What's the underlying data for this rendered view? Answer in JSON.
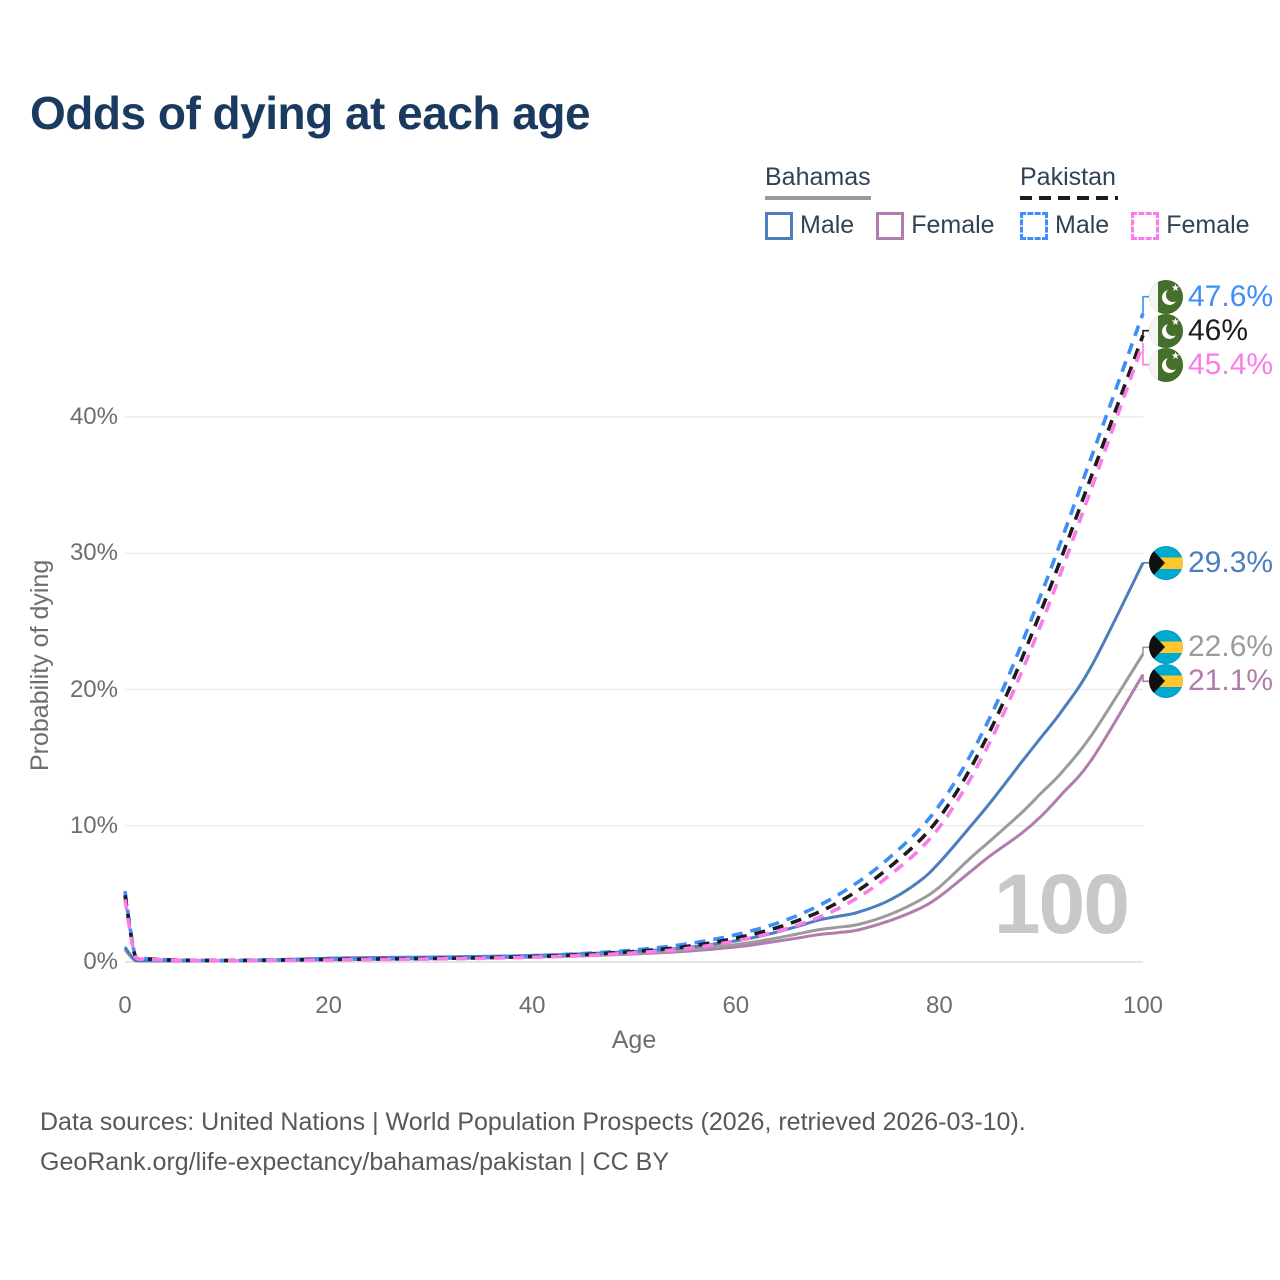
{
  "title": "Odds of dying at each age",
  "legend": {
    "groups": [
      {
        "country": "Bahamas",
        "line_style": "solid",
        "underline_color": "#9a9a9a",
        "items": [
          {
            "label": "Male",
            "color": "#4b7ebd",
            "dashed": false
          },
          {
            "label": "Female",
            "color": "#b27cae",
            "dashed": false
          }
        ]
      },
      {
        "country": "Pakistan",
        "line_style": "dashed",
        "underline_color": "#1c1c1c",
        "items": [
          {
            "label": "Male",
            "color": "#3e8ef7",
            "dashed": true
          },
          {
            "label": "Female",
            "color": "#fb7be9",
            "dashed": true
          }
        ]
      }
    ]
  },
  "watermark": "100",
  "footer": {
    "line1": "Data sources: United Nations | World Population Prospects (2026, retrieved 2026-03-10).",
    "line2": "GeoRank.org/life-expectancy/bahamas/pakistan | CC BY"
  },
  "chart_data": {
    "type": "line",
    "title": "Odds of dying at each age",
    "xlabel": "Age",
    "ylabel": "Probability of dying",
    "xlim": [
      0,
      100
    ],
    "ylim": [
      0,
      48
    ],
    "x_ticks": [
      0,
      20,
      40,
      60,
      80,
      100
    ],
    "y_ticks": [
      {
        "value": 0,
        "label": "0%"
      },
      {
        "value": 10,
        "label": "10%"
      },
      {
        "value": 20,
        "label": "20%"
      },
      {
        "value": 30,
        "label": "30%"
      },
      {
        "value": 40,
        "label": "40%"
      }
    ],
    "grid": true,
    "legend_position": "top-right",
    "series": [
      {
        "id": "bahamas-female",
        "name": "Bahamas Female",
        "country": "bahamas",
        "sex": "female",
        "color": "#b27cae",
        "dashed": false,
        "end_label": "21.1%",
        "points": [
          [
            0,
            0.9
          ],
          [
            1,
            0.1
          ],
          [
            2,
            0.07
          ],
          [
            5,
            0.06
          ],
          [
            10,
            0.07
          ],
          [
            15,
            0.11
          ],
          [
            20,
            0.16
          ],
          [
            25,
            0.2
          ],
          [
            30,
            0.24
          ],
          [
            35,
            0.29
          ],
          [
            40,
            0.36
          ],
          [
            45,
            0.45
          ],
          [
            50,
            0.59
          ],
          [
            55,
            0.78
          ],
          [
            60,
            1.1
          ],
          [
            63,
            1.4
          ],
          [
            66,
            1.75
          ],
          [
            68,
            2.0
          ],
          [
            70,
            2.15
          ],
          [
            72,
            2.35
          ],
          [
            75,
            3.0
          ],
          [
            78,
            3.9
          ],
          [
            80,
            4.8
          ],
          [
            83,
            6.6
          ],
          [
            85,
            7.8
          ],
          [
            88,
            9.4
          ],
          [
            90,
            10.7
          ],
          [
            92,
            12.3
          ],
          [
            95,
            14.9
          ],
          [
            100,
            21.1
          ]
        ]
      },
      {
        "id": "bahamas-both",
        "name": "Bahamas Both sexes",
        "country": "bahamas",
        "sex": "both",
        "color": "#9b9b9b",
        "dashed": false,
        "end_label": "22.6%",
        "points": [
          [
            0,
            1.0
          ],
          [
            1,
            0.11
          ],
          [
            2,
            0.08
          ],
          [
            5,
            0.07
          ],
          [
            10,
            0.08
          ],
          [
            15,
            0.14
          ],
          [
            20,
            0.22
          ],
          [
            25,
            0.27
          ],
          [
            30,
            0.31
          ],
          [
            35,
            0.35
          ],
          [
            40,
            0.41
          ],
          [
            45,
            0.51
          ],
          [
            50,
            0.66
          ],
          [
            55,
            0.88
          ],
          [
            60,
            1.28
          ],
          [
            63,
            1.62
          ],
          [
            66,
            2.05
          ],
          [
            68,
            2.35
          ],
          [
            70,
            2.55
          ],
          [
            72,
            2.75
          ],
          [
            75,
            3.45
          ],
          [
            78,
            4.5
          ],
          [
            80,
            5.5
          ],
          [
            83,
            7.6
          ],
          [
            85,
            8.9
          ],
          [
            88,
            10.9
          ],
          [
            90,
            12.4
          ],
          [
            92,
            13.9
          ],
          [
            95,
            16.7
          ],
          [
            100,
            22.6
          ]
        ]
      },
      {
        "id": "bahamas-male",
        "name": "Bahamas Male",
        "country": "bahamas",
        "sex": "male",
        "color": "#4b7ebd",
        "dashed": false,
        "end_label": "29.3%",
        "points": [
          [
            0,
            1.1
          ],
          [
            1,
            0.12
          ],
          [
            2,
            0.09
          ],
          [
            5,
            0.08
          ],
          [
            10,
            0.09
          ],
          [
            15,
            0.17
          ],
          [
            20,
            0.28
          ],
          [
            25,
            0.33
          ],
          [
            30,
            0.36
          ],
          [
            35,
            0.41
          ],
          [
            40,
            0.48
          ],
          [
            45,
            0.6
          ],
          [
            50,
            0.78
          ],
          [
            55,
            1.05
          ],
          [
            60,
            1.55
          ],
          [
            63,
            2.0
          ],
          [
            66,
            2.6
          ],
          [
            68,
            3.05
          ],
          [
            70,
            3.35
          ],
          [
            72,
            3.65
          ],
          [
            75,
            4.5
          ],
          [
            78,
            5.9
          ],
          [
            80,
            7.3
          ],
          [
            83,
            9.9
          ],
          [
            85,
            11.7
          ],
          [
            88,
            14.6
          ],
          [
            90,
            16.5
          ],
          [
            92,
            18.4
          ],
          [
            95,
            21.8
          ],
          [
            100,
            29.3
          ]
        ]
      },
      {
        "id": "pakistan-male",
        "name": "Pakistan Male",
        "country": "pakistan",
        "sex": "male",
        "color": "#3e8ef7",
        "dashed": true,
        "end_label": "47.6%",
        "points": [
          [
            0,
            5.2
          ],
          [
            1,
            0.45
          ],
          [
            2,
            0.25
          ],
          [
            5,
            0.15
          ],
          [
            10,
            0.12
          ],
          [
            15,
            0.16
          ],
          [
            20,
            0.21
          ],
          [
            25,
            0.25
          ],
          [
            30,
            0.3
          ],
          [
            35,
            0.36
          ],
          [
            40,
            0.46
          ],
          [
            45,
            0.62
          ],
          [
            50,
            0.88
          ],
          [
            55,
            1.3
          ],
          [
            60,
            2.0
          ],
          [
            65,
            3.1
          ],
          [
            70,
            4.9
          ],
          [
            75,
            7.6
          ],
          [
            80,
            11.5
          ],
          [
            85,
            18.0
          ],
          [
            90,
            27.0
          ],
          [
            95,
            37.2
          ],
          [
            100,
            47.6
          ]
        ]
      },
      {
        "id": "pakistan-both",
        "name": "Pakistan Both sexes",
        "country": "pakistan",
        "sex": "both",
        "color": "#1c1c1c",
        "dashed": true,
        "end_label": "46%",
        "points": [
          [
            0,
            4.9
          ],
          [
            1,
            0.42
          ],
          [
            2,
            0.23
          ],
          [
            5,
            0.14
          ],
          [
            10,
            0.11
          ],
          [
            15,
            0.14
          ],
          [
            20,
            0.18
          ],
          [
            25,
            0.22
          ],
          [
            30,
            0.26
          ],
          [
            35,
            0.31
          ],
          [
            40,
            0.4
          ],
          [
            45,
            0.54
          ],
          [
            50,
            0.77
          ],
          [
            55,
            1.12
          ],
          [
            60,
            1.75
          ],
          [
            65,
            2.75
          ],
          [
            70,
            4.35
          ],
          [
            75,
            6.9
          ],
          [
            80,
            10.6
          ],
          [
            85,
            17.0
          ],
          [
            90,
            25.8
          ],
          [
            95,
            35.8
          ],
          [
            100,
            46
          ]
        ]
      },
      {
        "id": "pakistan-female",
        "name": "Pakistan Female",
        "country": "pakistan",
        "sex": "female",
        "color": "#fb7be9",
        "dashed": true,
        "end_label": "45.4%",
        "points": [
          [
            0,
            4.6
          ],
          [
            1,
            0.4
          ],
          [
            2,
            0.21
          ],
          [
            5,
            0.13
          ],
          [
            10,
            0.1
          ],
          [
            15,
            0.12
          ],
          [
            20,
            0.15
          ],
          [
            25,
            0.18
          ],
          [
            30,
            0.22
          ],
          [
            35,
            0.27
          ],
          [
            40,
            0.35
          ],
          [
            45,
            0.47
          ],
          [
            50,
            0.67
          ],
          [
            55,
            0.97
          ],
          [
            60,
            1.55
          ],
          [
            65,
            2.45
          ],
          [
            70,
            3.9
          ],
          [
            75,
            6.3
          ],
          [
            80,
            9.9
          ],
          [
            85,
            16.2
          ],
          [
            90,
            24.8
          ],
          [
            95,
            34.9
          ],
          [
            100,
            45.4
          ]
        ]
      }
    ]
  }
}
